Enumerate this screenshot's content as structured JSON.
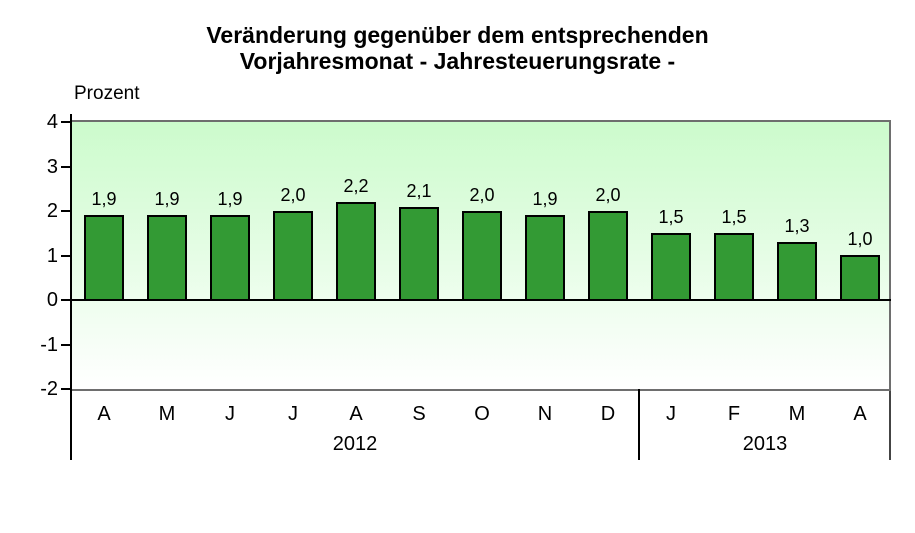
{
  "header": {
    "title_line1": "Veränderung gegenüber dem entsprechenden",
    "title_line2": "Vorjahresmonat - Jahresteuerungsrate -"
  },
  "chart_data": {
    "type": "bar",
    "title": "Veränderung gegenüber dem entsprechenden Vorjahresmonat - Jahresteuerungsrate -",
    "ylabel": "Prozent",
    "xlabel": "",
    "categories": [
      "A",
      "M",
      "J",
      "J",
      "A",
      "S",
      "O",
      "N",
      "D",
      "J",
      "F",
      "M",
      "A"
    ],
    "values": [
      1.9,
      1.9,
      1.9,
      2.0,
      2.2,
      2.1,
      2.0,
      1.9,
      2.0,
      1.5,
      1.5,
      1.3,
      1.0
    ],
    "value_labels": [
      "1,9",
      "1,9",
      "1,9",
      "2,0",
      "2,2",
      "2,1",
      "2,0",
      "1,9",
      "2,0",
      "1,5",
      "1,5",
      "1,3",
      "1,0"
    ],
    "groups": [
      {
        "year": "2012",
        "months": [
          "A",
          "M",
          "J",
          "J",
          "A",
          "S",
          "O",
          "N",
          "D"
        ]
      },
      {
        "year": "2013",
        "months": [
          "J",
          "F",
          "M",
          "A"
        ]
      }
    ],
    "yticks": [
      4,
      3,
      2,
      1,
      0,
      -1,
      -2
    ],
    "ylim": [
      -2,
      4
    ],
    "grid": false,
    "legend": false,
    "colors": {
      "bar_fill": "#339a34",
      "bar_border": "#000000",
      "plot_bg_top": "#ccfbcc",
      "plot_bg_bottom": "#ffffff",
      "frame": "#6e6e6e",
      "axis": "#000000",
      "text": "#000000"
    }
  }
}
